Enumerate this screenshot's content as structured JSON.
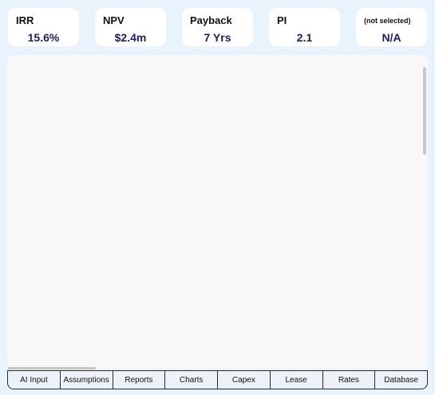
{
  "metrics": [
    {
      "label": "IRR",
      "value": "15.6%"
    },
    {
      "label": "NPV",
      "value": "$2.4m"
    },
    {
      "label": "Payback",
      "value": "7 Yrs"
    },
    {
      "label": "PI",
      "value": "2.1"
    },
    {
      "label": "(not selected)",
      "value": "N/A"
    }
  ],
  "tabs": [
    {
      "label": "AI Input"
    },
    {
      "label": "Assumptions"
    },
    {
      "label": "Reports"
    },
    {
      "label": "Charts"
    },
    {
      "label": "Capex"
    },
    {
      "label": "Lease"
    },
    {
      "label": "Rates"
    },
    {
      "label": "Database"
    }
  ],
  "colors": {
    "background": "#e9f3fc",
    "card": "#ffffff",
    "value_text": "#1c1c6e",
    "panel": "#f8f8f8",
    "tab_background": "#ecf2f7"
  }
}
